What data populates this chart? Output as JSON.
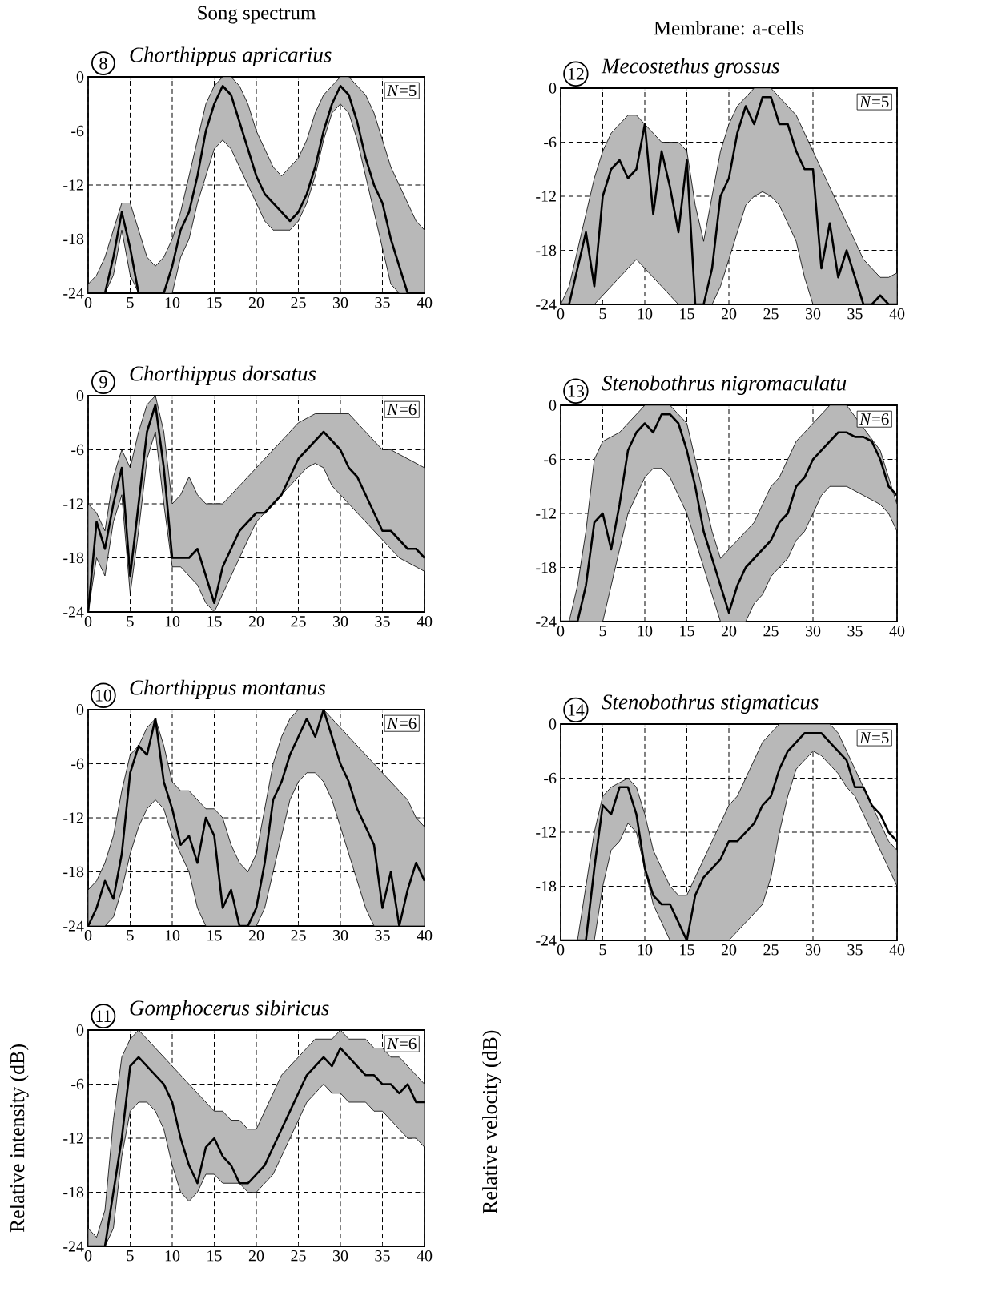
{
  "chart_data": [
    {
      "type": "line",
      "title": "Chorthippus apricarius",
      "subtitle": "Song spectrum",
      "annotations": [
        "8",
        "*N*=5"
      ],
      "xlim": [
        0,
        40
      ],
      "ylim": [
        -24,
        0
      ],
      "xticks": [
        0,
        5,
        10,
        15,
        20,
        25,
        30,
        35,
        40
      ],
      "yticks": [
        -24,
        -18,
        -12,
        -6,
        0
      ],
      "grid": true,
      "x": [
        0,
        1,
        2,
        3,
        4,
        5,
        6,
        7,
        8,
        9,
        10,
        11,
        12,
        13,
        14,
        15,
        16,
        17,
        18,
        19,
        20,
        21,
        22,
        23,
        24,
        25,
        26,
        27,
        28,
        29,
        30,
        31,
        32,
        33,
        34,
        35,
        36,
        37,
        38,
        39,
        40
      ],
      "series": [
        {
          "color": "#000000",
          "values": [
            -24,
            -24,
            -24,
            -20,
            -15,
            -19,
            -24,
            -24,
            -24,
            -24,
            -21,
            -17,
            -15,
            -11,
            -6,
            -3,
            -1,
            -2,
            -5,
            -8,
            -11,
            -13,
            -14,
            -15,
            -16,
            -15,
            -13,
            -10,
            -6,
            -3,
            -1,
            -2,
            -5,
            -9,
            -12,
            -14,
            -18,
            -21,
            -24,
            -24,
            -24
          ],
          "lower": [
            -24,
            -24,
            -24,
            -22,
            -17,
            -22,
            -24,
            -24,
            -24,
            -24,
            -24,
            -20,
            -18,
            -14,
            -11,
            -8,
            -7,
            -8,
            -10,
            -12,
            -14,
            -16,
            -17,
            -17,
            -17,
            -16,
            -14,
            -11,
            -7,
            -4,
            -3,
            -4,
            -7,
            -11,
            -15,
            -19,
            -23,
            -24,
            -24,
            -24,
            -24
          ],
          "upper": [
            -23,
            -22,
            -20,
            -17,
            -14,
            -14,
            -17,
            -20,
            -21,
            -20,
            -18,
            -15,
            -11,
            -7,
            -3,
            -1,
            0,
            0,
            -1,
            -3,
            -6,
            -8,
            -10,
            -11,
            -10,
            -9,
            -7,
            -4,
            -2,
            -1,
            0,
            0,
            -1,
            -2,
            -4,
            -7,
            -10,
            -12,
            -14,
            -16,
            -17
          ]
        }
      ]
    },
    {
      "type": "line",
      "title": "Chorthippus dorsatus",
      "annotations": [
        "9",
        "*N*=6"
      ],
      "xlim": [
        0,
        40
      ],
      "ylim": [
        -24,
        0
      ],
      "xticks": [
        0,
        5,
        10,
        15,
        20,
        25,
        30,
        35,
        40
      ],
      "yticks": [
        -24,
        -18,
        -12,
        -6,
        0
      ],
      "grid": true,
      "x": [
        0,
        1,
        2,
        3,
        4,
        5,
        6,
        7,
        8,
        9,
        10,
        11,
        12,
        13,
        14,
        15,
        16,
        17,
        18,
        19,
        20,
        21,
        22,
        23,
        24,
        25,
        26,
        27,
        28,
        29,
        30,
        31,
        32,
        33,
        34,
        35,
        36,
        37,
        38,
        39,
        40
      ],
      "series": [
        {
          "color": "#000000",
          "values": [
            -24,
            -14,
            -17,
            -12,
            -8,
            -20,
            -12,
            -4,
            -1,
            -8,
            -18,
            -18,
            -18,
            -17,
            -20,
            -23,
            -19,
            -17,
            -15,
            -14,
            -13,
            -13,
            -12,
            -11,
            -9,
            -7,
            -6,
            -5,
            -4,
            -5,
            -6,
            -8,
            -9,
            -11,
            -13,
            -15,
            -15,
            -16,
            -17,
            -17,
            -18
          ],
          "lower": [
            -24,
            -18,
            -20,
            -14,
            -11,
            -22,
            -15,
            -7,
            -4,
            -12,
            -19,
            -19,
            -20,
            -21,
            -23,
            -24,
            -22,
            -20,
            -18,
            -16,
            -14,
            -13,
            -12,
            -11,
            -10,
            -9,
            -8,
            -7.5,
            -8,
            -10,
            -11,
            -12,
            -13,
            -14,
            -15,
            -16,
            -17,
            -18,
            -18.5,
            -19,
            -19.5
          ],
          "upper": [
            -12,
            -13,
            -15,
            -9,
            -6,
            -8,
            -4,
            -1,
            0,
            -4,
            -12,
            -11,
            -9,
            -11,
            -12,
            -12,
            -12,
            -11,
            -10,
            -9,
            -8,
            -7,
            -6,
            -5,
            -4,
            -3,
            -2.5,
            -2,
            -2,
            -2,
            -2,
            -2,
            -3,
            -4,
            -5,
            -6,
            -6,
            -6.5,
            -7,
            -7.5,
            -8
          ]
        }
      ]
    },
    {
      "type": "line",
      "title": "Chorthippus montanus",
      "annotations": [
        "10",
        "*N*=6"
      ],
      "xlim": [
        0,
        40
      ],
      "ylim": [
        -24,
        0
      ],
      "xticks": [
        0,
        5,
        10,
        15,
        20,
        25,
        30,
        35,
        40
      ],
      "yticks": [
        -24,
        -18,
        -12,
        -6,
        0
      ],
      "grid": true,
      "x": [
        0,
        1,
        2,
        3,
        4,
        5,
        6,
        7,
        8,
        9,
        10,
        11,
        12,
        13,
        14,
        15,
        16,
        17,
        18,
        19,
        20,
        21,
        22,
        23,
        24,
        25,
        26,
        27,
        28,
        29,
        30,
        31,
        32,
        33,
        34,
        35,
        36,
        37,
        38,
        39,
        40
      ],
      "series": [
        {
          "color": "#000000",
          "values": [
            -24,
            -22,
            -19,
            -21,
            -16,
            -7,
            -4,
            -5,
            -1,
            -8,
            -11,
            -15,
            -14,
            -17,
            -12,
            -14,
            -22,
            -20,
            -24,
            -24,
            -22,
            -17,
            -10,
            -8,
            -5,
            -3,
            -1,
            -3,
            0,
            -3,
            -6,
            -8,
            -11,
            -13,
            -15,
            -22,
            -18,
            -24,
            -20,
            -17,
            -19
          ],
          "lower": [
            -24,
            -24,
            -24,
            -23,
            -20,
            -16,
            -13,
            -11,
            -10,
            -11,
            -14,
            -16,
            -18,
            -22,
            -24,
            -24,
            -24,
            -24,
            -24,
            -24,
            -24,
            -22,
            -18,
            -14,
            -10,
            -8,
            -7,
            -7,
            -8,
            -10,
            -13,
            -16,
            -19,
            -22,
            -24,
            -24,
            -24,
            -24,
            -24,
            -24,
            -24
          ],
          "upper": [
            -20,
            -19,
            -17,
            -14,
            -9,
            -5,
            -4,
            -2,
            -1,
            -4,
            -8,
            -9,
            -9,
            -10,
            -11,
            -11,
            -12,
            -15,
            -17,
            -18,
            -16,
            -11,
            -6,
            -3,
            -1,
            0,
            0,
            0,
            0,
            -1,
            -2,
            -3,
            -4,
            -5,
            -6,
            -7,
            -8,
            -9,
            -10,
            -12,
            -13
          ]
        }
      ]
    },
    {
      "type": "line",
      "title": "Gomphocerus sibiricus",
      "ylabel": "Relative intensity (dB)",
      "annotations": [
        "11",
        "*N*=6"
      ],
      "xlim": [
        0,
        40
      ],
      "ylim": [
        -24,
        0
      ],
      "xticks": [
        0,
        5,
        10,
        15,
        20,
        25,
        30,
        35,
        40
      ],
      "yticks": [
        -24,
        -18,
        -12,
        -6,
        0
      ],
      "grid": true,
      "x": [
        0,
        1,
        2,
        3,
        4,
        5,
        6,
        7,
        8,
        9,
        10,
        11,
        12,
        13,
        14,
        15,
        16,
        17,
        18,
        19,
        20,
        21,
        22,
        23,
        24,
        25,
        26,
        27,
        28,
        29,
        30,
        31,
        32,
        33,
        34,
        35,
        36,
        37,
        38,
        39,
        40
      ],
      "series": [
        {
          "color": "#000000",
          "values": [
            -24,
            -24,
            -24,
            -18,
            -12,
            -4,
            -3,
            -4,
            -5,
            -6,
            -8,
            -12,
            -15,
            -17,
            -13,
            -12,
            -14,
            -15,
            -17,
            -17,
            -16,
            -15,
            -13,
            -11,
            -9,
            -7,
            -5,
            -4,
            -3,
            -4,
            -2,
            -3,
            -4,
            -5,
            -5,
            -6,
            -6,
            -7,
            -6,
            -8,
            -8
          ],
          "lower": [
            -24,
            -24,
            -24,
            -22,
            -14,
            -9,
            -8,
            -8,
            -9,
            -11,
            -15,
            -18,
            -19,
            -18,
            -16,
            -16,
            -17,
            -17,
            -17,
            -18,
            -18,
            -17,
            -16,
            -14,
            -12,
            -10,
            -8,
            -7,
            -6,
            -7,
            -7,
            -8,
            -8,
            -8,
            -9,
            -9,
            -10,
            -11,
            -12,
            -12,
            -13
          ],
          "upper": [
            -22,
            -23,
            -20,
            -10,
            -3,
            -1,
            0,
            -1,
            -2,
            -3,
            -4,
            -5,
            -6,
            -7,
            -8,
            -9,
            -9,
            -10,
            -10,
            -11,
            -11,
            -9,
            -7,
            -5,
            -4,
            -3,
            -2,
            -1,
            -1,
            -1,
            0,
            -1,
            -1,
            -1,
            -2,
            -2,
            -3,
            -3,
            -4,
            -5,
            -6
          ]
        }
      ]
    },
    {
      "type": "line",
      "title": "Mecostethus grossus",
      "subtitle": "Membrane: a-cells",
      "annotations": [
        "12",
        "*N*=5"
      ],
      "xlim": [
        0,
        40
      ],
      "ylim": [
        -24,
        0
      ],
      "xticks": [
        0,
        5,
        10,
        15,
        20,
        25,
        30,
        35,
        40
      ],
      "yticks": [
        -24,
        -18,
        -12,
        -6,
        0
      ],
      "grid": true,
      "x": [
        0,
        1,
        2,
        3,
        4,
        5,
        6,
        7,
        8,
        9,
        10,
        11,
        12,
        13,
        14,
        15,
        16,
        17,
        18,
        19,
        20,
        21,
        22,
        23,
        24,
        25,
        26,
        27,
        28,
        29,
        30,
        31,
        32,
        33,
        34,
        35,
        36,
        37,
        38,
        39,
        40
      ],
      "series": [
        {
          "color": "#000000",
          "values": [
            -24,
            -24,
            -20,
            -16,
            -22,
            -12,
            -9,
            -8,
            -10,
            -9,
            -4,
            -14,
            -7,
            -11,
            -16,
            -8,
            -24,
            -24,
            -20,
            -12,
            -10,
            -5,
            -2,
            -4,
            -1,
            -1,
            -4,
            -4,
            -7,
            -9,
            -9,
            -20,
            -15,
            -21,
            -18,
            -21,
            -24,
            -24,
            -23,
            -24,
            -24
          ],
          "lower": [
            -24,
            -24,
            -24,
            -24,
            -24,
            -23,
            -22,
            -21,
            -20,
            -19,
            -20,
            -21,
            -22,
            -23,
            -24,
            -24,
            -24,
            -24,
            -24,
            -22,
            -19,
            -16,
            -13,
            -12,
            -11.5,
            -12,
            -13,
            -15,
            -17,
            -21,
            -24,
            -24,
            -24,
            -24,
            -24,
            -24,
            -24,
            -24,
            -24,
            -24,
            -24
          ],
          "upper": [
            -24,
            -22,
            -18,
            -14,
            -10,
            -7,
            -5,
            -4,
            -3,
            -3,
            -4,
            -5,
            -6,
            -6,
            -6,
            -7,
            -13,
            -17,
            -12,
            -7,
            -4,
            -2,
            -1,
            0,
            0,
            0,
            -1,
            -2,
            -3,
            -5,
            -7,
            -9,
            -11,
            -13,
            -15,
            -17,
            -19,
            -20,
            -21,
            -21,
            -20.5
          ]
        }
      ]
    },
    {
      "type": "line",
      "title": "Stenobothrus nigromaculatu",
      "annotations": [
        "13",
        "*N*=6"
      ],
      "xlim": [
        0,
        40
      ],
      "ylim": [
        -24,
        0
      ],
      "xticks": [
        0,
        5,
        10,
        15,
        20,
        25,
        30,
        35,
        40
      ],
      "yticks": [
        -24,
        -18,
        -12,
        -6,
        0
      ],
      "grid": true,
      "x": [
        0,
        1,
        2,
        3,
        4,
        5,
        6,
        7,
        8,
        9,
        10,
        11,
        12,
        13,
        14,
        15,
        16,
        17,
        18,
        19,
        20,
        21,
        22,
        23,
        24,
        25,
        26,
        27,
        28,
        29,
        30,
        31,
        32,
        33,
        34,
        35,
        36,
        37,
        38,
        39,
        40
      ],
      "series": [
        {
          "color": "#000000",
          "values": [
            -24,
            -24,
            -24,
            -20,
            -13,
            -12,
            -16,
            -11,
            -5,
            -3,
            -2,
            -3,
            -1,
            -1,
            -2,
            -5,
            -9,
            -14,
            -17,
            -20,
            -23,
            -20,
            -18,
            -17,
            -16,
            -15,
            -13,
            -12,
            -9,
            -8,
            -6,
            -5,
            -4,
            -3,
            -3,
            -3.5,
            -3.5,
            -4,
            -6,
            -9,
            -10
          ],
          "lower": [
            -24,
            -24,
            -24,
            -24,
            -24,
            -24,
            -20,
            -16,
            -12,
            -10,
            -8,
            -7,
            -7,
            -8,
            -10,
            -12,
            -15,
            -18,
            -21,
            -24,
            -24,
            -24,
            -24,
            -22,
            -21,
            -19,
            -18,
            -17,
            -15,
            -14,
            -12,
            -10,
            -9,
            -9,
            -9,
            null,
            null,
            null,
            -11,
            -12,
            -14
          ],
          "upper": [
            -24,
            -24,
            -20,
            -14,
            -6,
            -4,
            -3.5,
            -3,
            -2,
            -1,
            0,
            0,
            0,
            0,
            -1,
            -2,
            -6,
            -10,
            -14,
            -17,
            -16,
            -15,
            -14,
            -13,
            -11,
            -9,
            -8,
            -6,
            -4,
            -3,
            -2,
            -1,
            0,
            0,
            0,
            null,
            null,
            null,
            -5,
            -8,
            -11
          ]
        }
      ]
    },
    {
      "type": "line",
      "title": "Stenobothrus stigmaticus",
      "ylabel": "Relative velocity (dB)",
      "annotations": [
        "14",
        "*N*=5"
      ],
      "xlim": [
        0,
        40
      ],
      "ylim": [
        -24,
        0
      ],
      "xticks": [
        0,
        5,
        10,
        15,
        20,
        25,
        30,
        35,
        40
      ],
      "yticks": [
        -24,
        -18,
        -12,
        -6,
        0
      ],
      "grid": true,
      "x": [
        0,
        1,
        2,
        3,
        4,
        5,
        6,
        7,
        8,
        9,
        10,
        11,
        12,
        13,
        14,
        15,
        16,
        17,
        18,
        19,
        20,
        21,
        22,
        23,
        24,
        25,
        26,
        27,
        28,
        29,
        30,
        31,
        32,
        33,
        34,
        35,
        36,
        37,
        38,
        39,
        40
      ],
      "series": [
        {
          "color": "#000000",
          "values": [
            -24,
            -24,
            -24,
            -24,
            -16,
            -9,
            -10,
            -7,
            -7,
            -10,
            -16,
            -19,
            -20,
            -20,
            -22,
            -24,
            -19,
            -17,
            -16,
            -15,
            -13,
            -13,
            -12,
            -11,
            -9,
            -8,
            -5,
            -3,
            -2,
            -1,
            -1,
            -1,
            -2,
            -3,
            -4,
            -7,
            -7,
            -9,
            -10,
            -12,
            -13
          ],
          "lower": [
            -24,
            -24,
            -24,
            -24,
            -24,
            -18,
            -14,
            -13,
            -11,
            -12,
            -16,
            -20,
            -22,
            -24,
            -24,
            -24,
            -24,
            -24,
            -24,
            -24,
            -24,
            -23,
            -22,
            -21,
            -20,
            -17,
            -12,
            -8,
            -5,
            -4,
            -3,
            -3.5,
            -4.5,
            -5.5,
            -7,
            -8,
            -10,
            -12,
            -14,
            -16,
            -18
          ],
          "upper": [
            -24,
            -24,
            -24,
            -18,
            -12,
            -8,
            -7,
            -6.5,
            -6,
            -7,
            -10,
            -14,
            -16,
            -18,
            -19,
            -19,
            -17,
            -15,
            -13,
            -11,
            -9,
            -8,
            -6,
            -4,
            -2,
            -1,
            0,
            0,
            0,
            0,
            0,
            0,
            0,
            -1,
            -3,
            -5,
            -7,
            -9,
            -11,
            -13,
            -14
          ]
        }
      ]
    }
  ]
}
